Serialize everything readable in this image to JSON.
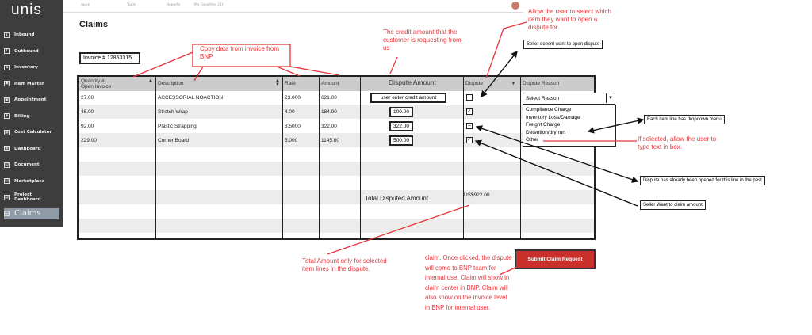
{
  "app": {
    "logo": "unis",
    "page_title": "Claims"
  },
  "topbar": {
    "items": [
      "Apps",
      "Tools",
      "Reports",
      "My Favorites (0)"
    ],
    "avatar": "Ex"
  },
  "sidebar": {
    "items": [
      {
        "label": "Inbound",
        "icon": "inbound-icon"
      },
      {
        "label": "Outbound",
        "icon": "outbound-icon"
      },
      {
        "label": "Inventory",
        "icon": "inventory-icon"
      },
      {
        "label": "Item Master",
        "icon": "item-master-icon"
      },
      {
        "label": "Appointment",
        "icon": "appointment-icon"
      },
      {
        "label": "Billing",
        "icon": "dollar-icon"
      },
      {
        "label": "Cost Calculator",
        "icon": "calculator-icon"
      },
      {
        "label": "Dashboard",
        "icon": "dashboard-icon"
      },
      {
        "label": "Document",
        "icon": "document-icon"
      },
      {
        "label": "Marketplace",
        "icon": "document-icon"
      },
      {
        "label": "Project Dashboard",
        "icon": "document-icon"
      },
      {
        "label": "Claims",
        "icon": "document-icon",
        "active": true
      }
    ]
  },
  "invoice": "Invoice # 12853315",
  "table": {
    "headers": [
      "Quantity #\nOpen Invoice",
      "Description",
      "Rate",
      "Amount",
      "Dispute Amount",
      "Dispute",
      "Dispute Reason"
    ],
    "rows": [
      {
        "qty": "27.00",
        "desc": "ACCESSORIAL NOACTION",
        "rate": "23.000",
        "amount": "621.00",
        "dispute_amount": "user enter credit amount",
        "dispute": "unchecked"
      },
      {
        "qty": "46.00",
        "desc": "Stretch Wrap",
        "rate": "4.00",
        "amount": "184.00",
        "dispute_amount": "100.00",
        "dispute": "checked"
      },
      {
        "qty": "92.00",
        "desc": "Plastic Strapping",
        "rate": "3.5000",
        "amount": "322.00",
        "dispute_amount": "322.00",
        "dispute": "disabled"
      },
      {
        "qty": "229.00",
        "desc": "Corner Board",
        "rate": "5.000",
        "amount": "1145.00",
        "dispute_amount": "500.00",
        "dispute": "checked"
      }
    ],
    "total_label": "Total Disputed Amount",
    "total_value": "US$922.00"
  },
  "reason_select": {
    "value": "Select Reason",
    "options": [
      "Compliance Charge",
      "Inventory Loss/Damage",
      "Freight Charge",
      "Detention/dry run",
      "Other"
    ]
  },
  "submit_label": "Submit Claim Request",
  "annotations": {
    "copy": "Copy data from invoice from BNP",
    "credit": "The credit amount that the customer is requesting from us",
    "allow": "Allow the user to select which item they want to open a dispute for.",
    "no_dispute": "Seller doesnt want to open dispute",
    "dropdown": "Each item line has dropdown menu",
    "other": "If selected, allow the user to type text in box.",
    "opened": "Dispute has already been opened for this line in the past",
    "claim": "Seller Want to claim amount",
    "total": "Total Amount only for selected item lines in the dispute.",
    "submit": "claim. Once clicked, the dispute will come to BNP team for internal use. Claim will show in claim center in BNP. Claim will also show on the invoice level in BNP for internal user."
  },
  "colors": {
    "sidebar": "#3d3d3d",
    "annotation": "#e8343a",
    "submit": "#c9302c"
  }
}
